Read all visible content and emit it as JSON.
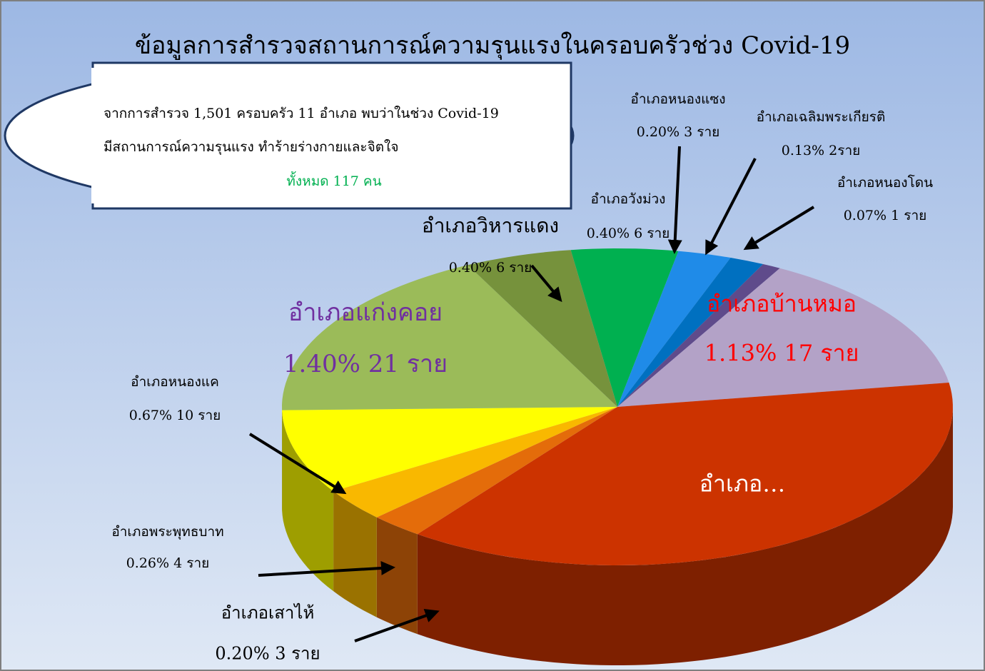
{
  "chart_data": {
    "type": "pie",
    "title": "ข้อมูลการสำรวจสถานการณ์ความรุนแรงในครอบครัวช่วง Covid-19",
    "annotation": {
      "line1": "จากการสำรวจ 1,501 ครอบครัว 11 อำเภอ พบว่าในช่วง Covid-19",
      "line2": "มีสถานการณ์ความรุนแรง ทำร้ายร่างกายและจิตใจ",
      "line3": "ทั้งหมด 117 คน"
    },
    "categories": [
      "อำเภอวังม่วง",
      "อำเภอหนองแซง",
      "อำเภอเฉลิมพระเกียรติ",
      "อำเภอหนองโดน",
      "อำเภอบ้านหมอ",
      "อำเภอ…",
      "อำเภอเสาไห้",
      "อำเภอพระพุทธบาท",
      "อำเภอหนองแค",
      "อำเภอแก่งคอย",
      "อำเภอวิหารแดง"
    ],
    "values": [
      0.4,
      0.2,
      0.13,
      0.07,
      1.13,
      2.93,
      0.2,
      0.26,
      0.67,
      1.4,
      0.4
    ],
    "value_labels": [
      "0.40% 6 ราย",
      "0.20% 3 ราย",
      "0.13% 2ราย",
      "0.07% 1 ราย",
      "1.13% 17 ราย",
      null,
      "0.20% 3 ราย",
      "0.26% 4 ราย",
      "0.67% 10 ราย",
      "1.40% 21 ราย",
      "0.40% 6 ราย"
    ],
    "colors": [
      "#00b050",
      "#1f8be8",
      "#0070c0",
      "#5f4b8b",
      "#b3a2c7",
      "#cc3300",
      "#e46c0a",
      "#f9b800",
      "#ffff00",
      "#9bbb59",
      "#76923c"
    ]
  }
}
